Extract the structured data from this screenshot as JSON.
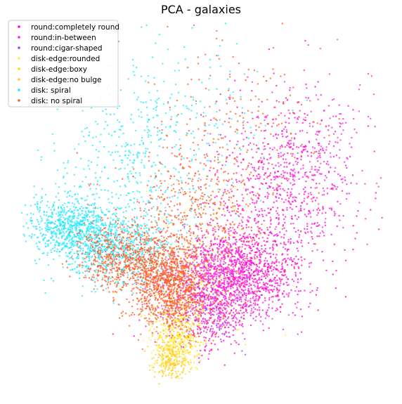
{
  "chart_data": {
    "type": "scatter",
    "title": "PCA - galaxies",
    "xlabel": "",
    "ylabel": "",
    "axes_visible": false,
    "grid": false,
    "legend_position": "top-left",
    "xlim": [
      -6,
      10
    ],
    "ylim": [
      -6,
      10
    ],
    "series": [
      {
        "name": "round:completely round",
        "color": "#ff00cc",
        "clusters": [
          {
            "cx": 3.8,
            "cy": -0.8,
            "sx": 1.4,
            "sy": 1.0,
            "n": 900
          },
          {
            "cx": 5.5,
            "cy": 2.5,
            "sx": 1.6,
            "sy": 2.0,
            "n": 600
          },
          {
            "cx": 2.2,
            "cy": -3.0,
            "sx": 1.0,
            "sy": 0.8,
            "n": 300
          }
        ]
      },
      {
        "name": "round:in-between",
        "color": "#ff22dd",
        "clusters": [
          {
            "cx": 3.0,
            "cy": -1.5,
            "sx": 1.2,
            "sy": 0.9,
            "n": 700
          },
          {
            "cx": 6.5,
            "cy": 4.0,
            "sx": 1.3,
            "sy": 1.8,
            "n": 300
          }
        ]
      },
      {
        "name": "round:cigar-shaped",
        "color": "#9944ee",
        "clusters": [
          {
            "cx": 2.5,
            "cy": -2.5,
            "sx": 1.0,
            "sy": 0.9,
            "n": 120
          }
        ]
      },
      {
        "name": "disk-edge:rounded",
        "color": "#ffee44",
        "clusters": [
          {
            "cx": 0.8,
            "cy": -4.2,
            "sx": 0.5,
            "sy": 0.6,
            "n": 250
          },
          {
            "cx": 2.5,
            "cy": -0.5,
            "sx": 1.5,
            "sy": 1.5,
            "n": 150
          }
        ]
      },
      {
        "name": "disk-edge:boxy",
        "color": "#ffdd00",
        "clusters": [
          {
            "cx": 1.0,
            "cy": -3.5,
            "sx": 0.6,
            "sy": 0.7,
            "n": 150
          }
        ]
      },
      {
        "name": "disk-edge:no bulge",
        "color": "#ffcc22",
        "clusters": [
          {
            "cx": 0.6,
            "cy": -4.8,
            "sx": 0.4,
            "sy": 0.4,
            "n": 200
          },
          {
            "cx": 1.5,
            "cy": -2.8,
            "sx": 0.8,
            "sy": 0.8,
            "n": 100
          }
        ]
      },
      {
        "name": "disk: spiral",
        "color": "#22e8ff",
        "clusters": [
          {
            "cx": -3.8,
            "cy": 1.0,
            "sx": 1.0,
            "sy": 0.6,
            "n": 700
          },
          {
            "cx": -1.8,
            "cy": 0.0,
            "sx": 1.2,
            "sy": 0.8,
            "n": 700
          },
          {
            "cx": -1.0,
            "cy": 3.5,
            "sx": 2.0,
            "sy": 2.0,
            "n": 450
          },
          {
            "cx": 1.0,
            "cy": 6.5,
            "sx": 2.2,
            "sy": 1.5,
            "n": 120
          }
        ]
      },
      {
        "name": "disk: no spiral",
        "color": "#ff5a22",
        "clusters": [
          {
            "cx": 0.5,
            "cy": -1.5,
            "sx": 0.9,
            "sy": 0.9,
            "n": 1100
          },
          {
            "cx": -1.5,
            "cy": -0.3,
            "sx": 1.0,
            "sy": 0.7,
            "n": 600
          },
          {
            "cx": 1.5,
            "cy": 1.5,
            "sx": 1.5,
            "sy": 1.5,
            "n": 400
          },
          {
            "cx": 3.5,
            "cy": 5.0,
            "sx": 2.0,
            "sy": 2.2,
            "n": 250
          }
        ]
      }
    ]
  }
}
